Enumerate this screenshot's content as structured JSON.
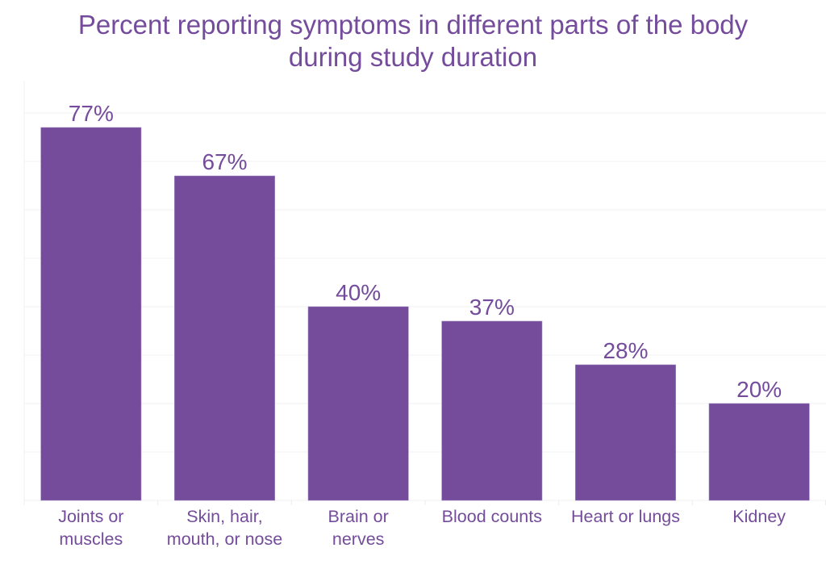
{
  "chart_data": {
    "type": "bar",
    "title": "Percent reporting symptoms in different parts of the body during study duration",
    "title_lines": [
      "Percent reporting symptoms in different parts of the body",
      "during study duration"
    ],
    "categories": [
      [
        "Joints or",
        "muscles"
      ],
      [
        "Skin, hair,",
        "mouth, or nose"
      ],
      [
        "Brain or",
        "nerves"
      ],
      [
        "Blood counts"
      ],
      [
        "Heart or lungs"
      ],
      [
        "Kidney"
      ]
    ],
    "values": [
      77,
      67,
      40,
      37,
      28,
      20
    ],
    "data_labels": [
      "77%",
      "67%",
      "40%",
      "37%",
      "28%",
      "20%"
    ],
    "xlabel": "",
    "ylabel": "",
    "ylim": [
      0,
      86.7
    ],
    "y_gridlines": [
      10,
      20,
      30,
      40,
      50,
      60,
      70,
      80
    ],
    "grid": true,
    "legend": "none",
    "bar_color": "#744c9b",
    "text_color": "#744c9b"
  }
}
